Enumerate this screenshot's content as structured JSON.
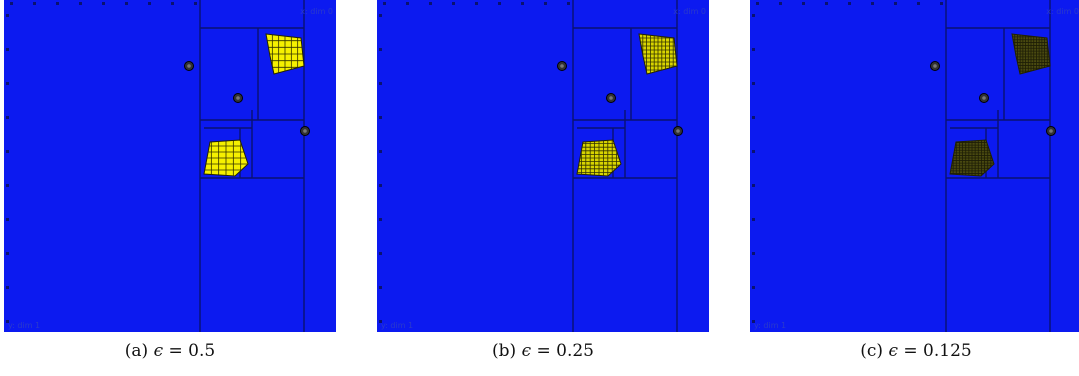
{
  "colors": {
    "background": "#0c1af0",
    "grid_line": "#0a1270",
    "blob_light": "#f5f000",
    "blob_dark": "#4a4a10",
    "point": "#333333"
  },
  "axis_labels": {
    "x_label": "x: dim 0",
    "y_label": "y: dim 1"
  },
  "panels": [
    {
      "id": "a",
      "caption_prefix": "(a)",
      "epsilon_symbol": "ϵ",
      "caption_value": "= 0.5",
      "cell_divisions": 6,
      "blob_shade": "light"
    },
    {
      "id": "b",
      "caption_prefix": "(b)",
      "epsilon_symbol": "ϵ",
      "caption_value": "= 0.25",
      "cell_divisions": 10,
      "blob_shade": "medium"
    },
    {
      "id": "c",
      "caption_prefix": "(c)",
      "epsilon_symbol": "ϵ",
      "caption_value": "= 0.125",
      "cell_divisions": 14,
      "blob_shade": "dark"
    }
  ]
}
